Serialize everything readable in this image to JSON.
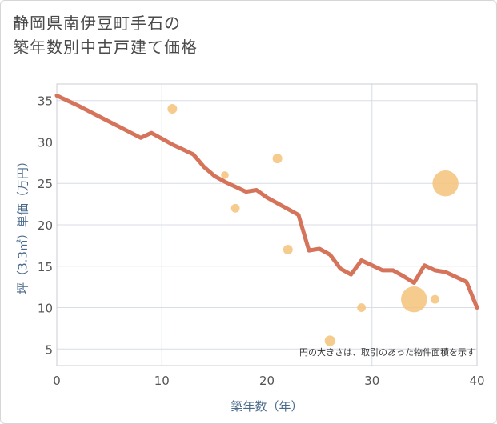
{
  "title": {
    "line1": "静岡県南伊豆町手石の",
    "line2": "築年数別中古戸建て価格"
  },
  "chart_data": {
    "type": "scatter+line",
    "title": "静岡県南伊豆町手石の築年数別中古戸建て価格",
    "xlabel": "築年数（年）",
    "ylabel": "坪（3.3㎡）単価（万円）",
    "xlim": [
      0,
      40
    ],
    "ylim": [
      3,
      37
    ],
    "xticks": [
      0,
      10,
      20,
      30,
      40
    ],
    "yticks": [
      5,
      10,
      15,
      20,
      25,
      30,
      35
    ],
    "grid": true,
    "annotation": "円の大きさは、取引のあった物件面積を示す",
    "colors": {
      "line": "#d5735b",
      "bubble": "#f5c27a",
      "grid": "#d8dde6"
    },
    "line_series": {
      "name": "trend",
      "x": [
        0,
        2,
        4,
        6,
        8,
        9,
        10,
        11,
        12,
        13,
        14,
        15,
        16,
        17,
        18,
        19,
        20,
        21,
        22,
        23,
        24,
        25,
        26,
        27,
        28,
        29,
        30,
        31,
        32,
        33,
        34,
        35,
        36,
        37,
        38,
        39,
        40
      ],
      "y": [
        35.6,
        34.4,
        33.1,
        31.8,
        30.5,
        31.1,
        30.4,
        29.7,
        29.1,
        28.5,
        27.0,
        25.9,
        25.2,
        24.6,
        24.0,
        24.2,
        23.3,
        22.6,
        21.9,
        21.2,
        16.9,
        17.1,
        16.4,
        14.7,
        14.0,
        15.7,
        15.1,
        14.5,
        14.5,
        13.8,
        13.0,
        15.1,
        14.5,
        14.3,
        13.7,
        13.1,
        10.0
      ]
    },
    "bubbles": [
      {
        "x": 11,
        "y": 34,
        "size": 1.0
      },
      {
        "x": 16,
        "y": 26,
        "size": 0.8
      },
      {
        "x": 17,
        "y": 22,
        "size": 0.9
      },
      {
        "x": 21,
        "y": 28,
        "size": 1.0
      },
      {
        "x": 22,
        "y": 17,
        "size": 1.0
      },
      {
        "x": 26,
        "y": 6,
        "size": 1.1
      },
      {
        "x": 29,
        "y": 10,
        "size": 0.9
      },
      {
        "x": 34,
        "y": 11,
        "size": 2.7
      },
      {
        "x": 36,
        "y": 11,
        "size": 0.9
      },
      {
        "x": 37,
        "y": 25,
        "size": 2.7
      }
    ]
  }
}
